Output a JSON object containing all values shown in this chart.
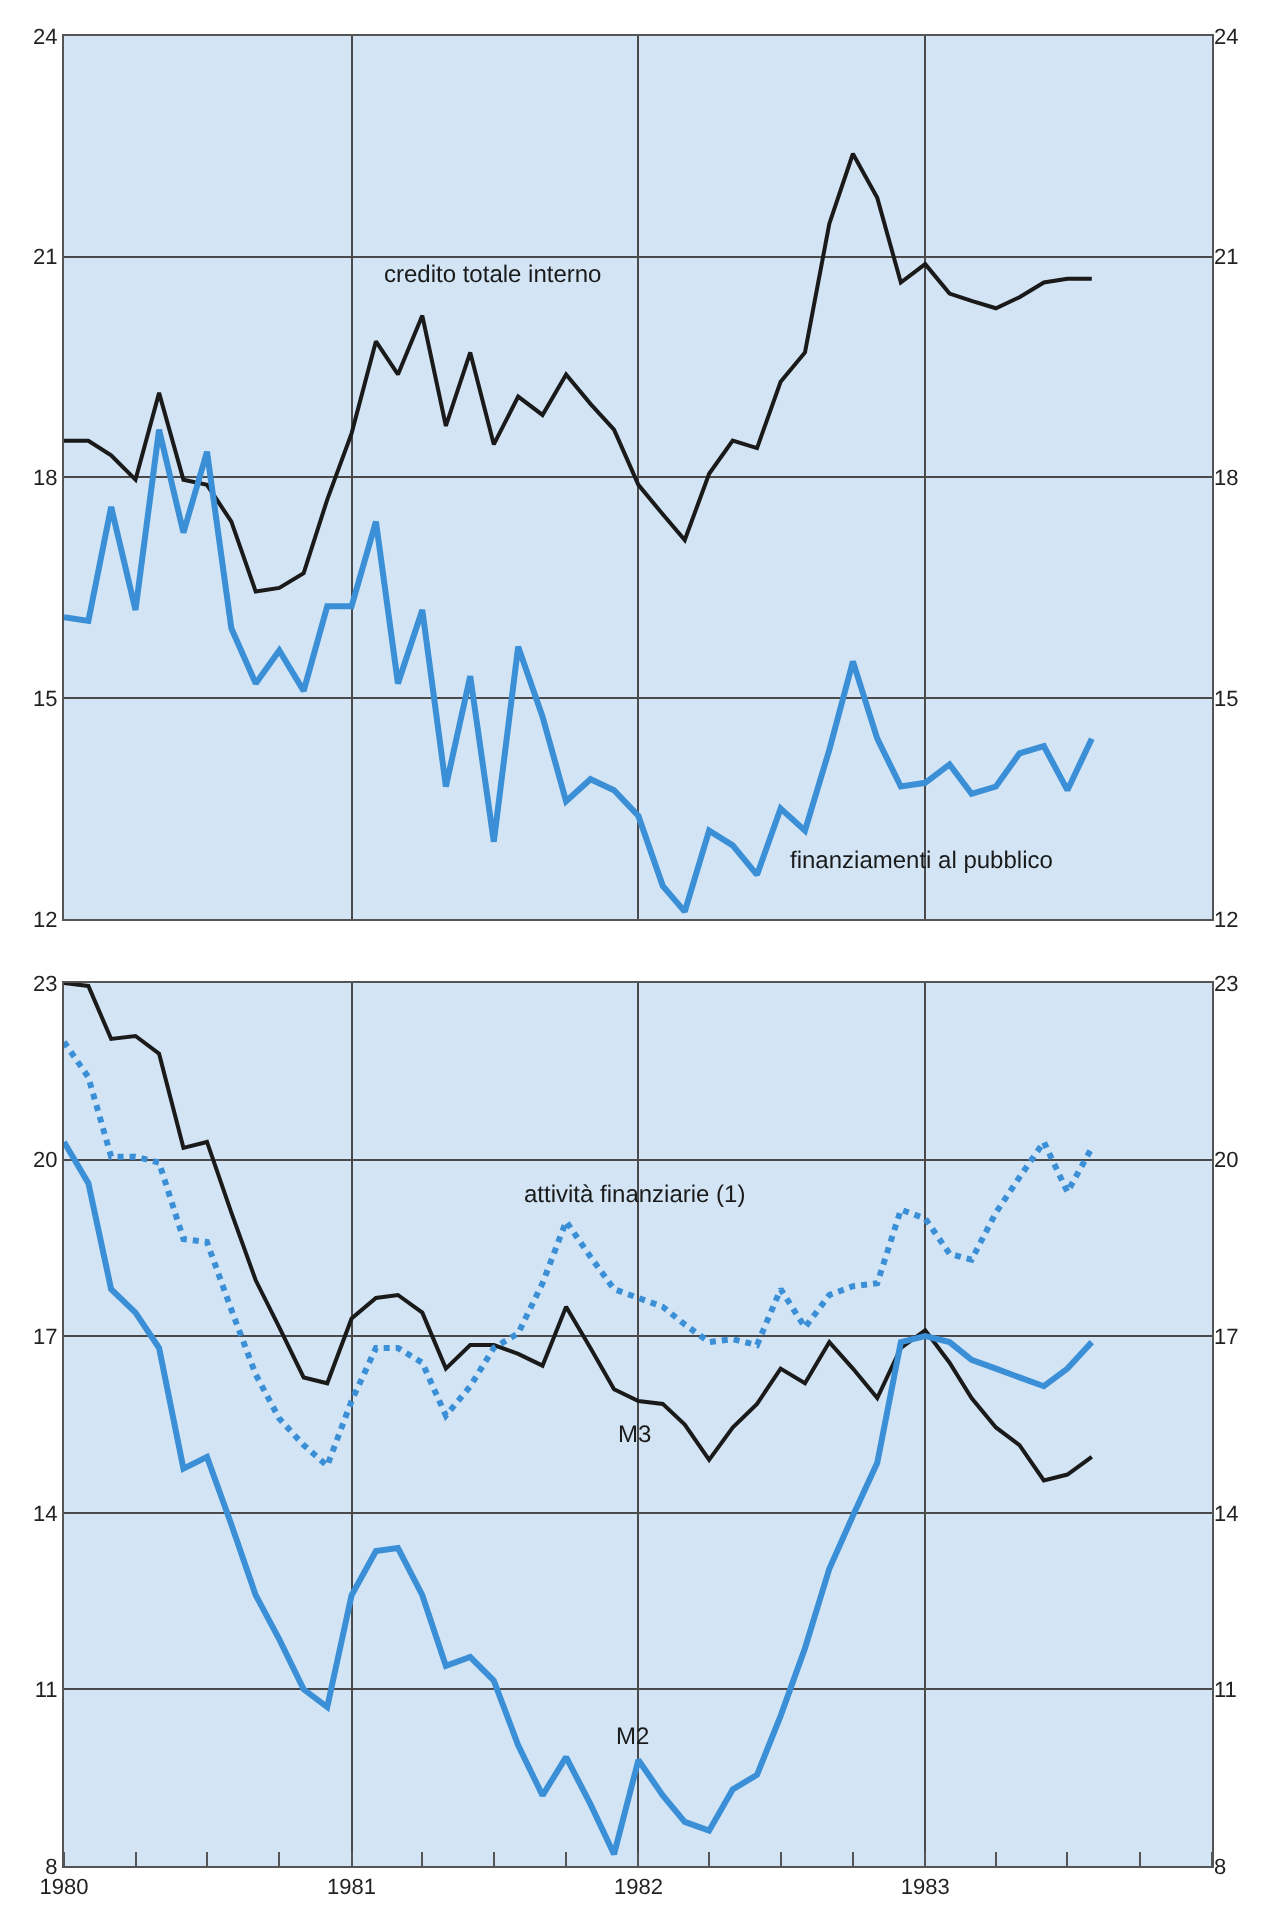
{
  "chart_data": [
    {
      "type": "line",
      "tick_labels": "y",
      "grid": true,
      "marker": "none",
      "x": [
        "1980-01",
        "1980-02",
        "1980-03",
        "1980-04",
        "1980-05",
        "1980-06",
        "1980-07",
        "1980-08",
        "1980-09",
        "1980-10",
        "1980-11",
        "1980-12",
        "1981-01",
        "1981-02",
        "1981-03",
        "1981-04",
        "1981-05",
        "1981-06",
        "1981-07",
        "1981-08",
        "1981-09",
        "1981-10",
        "1981-11",
        "1981-12",
        "1982-01",
        "1982-02",
        "1982-03",
        "1982-04",
        "1982-05",
        "1982-06",
        "1982-07",
        "1982-08",
        "1982-09",
        "1982-10",
        "1982-11",
        "1982-12",
        "1983-01",
        "1983-02",
        "1983-03",
        "1983-04",
        "1983-05",
        "1983-06",
        "1983-07",
        "1983-08"
      ],
      "xlim": [
        "1980-01-01",
        "1984-01-01"
      ],
      "xticks": [
        {
          "value": "1980-01-01",
          "label": null
        },
        {
          "value": "1981-01-01",
          "label": null
        },
        {
          "value": "1982-01-01",
          "label": null
        },
        {
          "value": "1983-01-01",
          "label": null
        },
        {
          "value": "1984-01-01",
          "label": null
        }
      ],
      "ylim": [
        12,
        24
      ],
      "yticks": [
        12,
        15,
        18,
        21,
        24
      ],
      "y2lim": [
        12,
        24
      ],
      "y2ticks": [
        12,
        15,
        18,
        21,
        24
      ],
      "series": [
        {
          "name": "credito totale interno",
          "color": "#1a1a1a",
          "line_style": "solid",
          "values": [
            18.5,
            18.5,
            18.3,
            17.97,
            19.15,
            17.97,
            17.9,
            17.4,
            16.45,
            16.5,
            16.7,
            17.7,
            18.6,
            19.85,
            19.4,
            20.2,
            18.7,
            19.7,
            18.45,
            19.1,
            18.85,
            19.4,
            19.0,
            18.65,
            17.9,
            17.5,
            17.15,
            18.05,
            18.5,
            18.4,
            19.3,
            19.7,
            21.45,
            22.4,
            21.8,
            20.65,
            20.9,
            20.5,
            20.4,
            20.3,
            20.45,
            20.65,
            20.7,
            20.7
          ]
        },
        {
          "name": "finanziamenti al pubblico",
          "color": "#3a8fd6",
          "line_style": "solid",
          "values": [
            16.1,
            16.05,
            17.6,
            16.2,
            18.65,
            17.25,
            18.35,
            15.95,
            15.2,
            15.65,
            15.1,
            16.25,
            16.25,
            17.4,
            15.2,
            16.2,
            13.8,
            15.3,
            13.05,
            15.7,
            14.75,
            13.6,
            13.9,
            13.75,
            13.4,
            12.45,
            12.1,
            13.2,
            13.0,
            12.6,
            13.5,
            13.2,
            14.3,
            15.5,
            14.45,
            13.8,
            13.85,
            14.1,
            13.7,
            13.8,
            14.25,
            14.35,
            13.75,
            14.45
          ]
        }
      ]
    },
    {
      "type": "line",
      "grid": true,
      "marker": "none",
      "x": [
        "1980-01",
        "1980-02",
        "1980-03",
        "1980-04",
        "1980-05",
        "1980-06",
        "1980-07",
        "1980-08",
        "1980-09",
        "1980-10",
        "1980-11",
        "1980-12",
        "1981-01",
        "1981-02",
        "1981-03",
        "1981-04",
        "1981-05",
        "1981-06",
        "1981-07",
        "1981-08",
        "1981-09",
        "1981-10",
        "1981-11",
        "1981-12",
        "1982-01",
        "1982-02",
        "1982-03",
        "1982-04",
        "1982-05",
        "1982-06",
        "1982-07",
        "1982-08",
        "1982-09",
        "1982-10",
        "1982-11",
        "1982-12",
        "1983-01",
        "1983-02",
        "1983-03",
        "1983-04",
        "1983-05",
        "1983-06",
        "1983-07",
        "1983-08"
      ],
      "xlim": [
        "1980-01-01",
        "1984-01-01"
      ],
      "xticks": [
        {
          "value": "1980-01-01",
          "label": "1980"
        },
        {
          "value": "1981-01-01",
          "label": "1981"
        },
        {
          "value": "1982-01-01",
          "label": "1982"
        },
        {
          "value": "1983-01-01",
          "label": "1983"
        },
        {
          "value": "1984-01-01",
          "label": null
        }
      ],
      "ylim": [
        8,
        23
      ],
      "yticks": [
        8,
        11,
        14,
        17,
        20,
        23
      ],
      "y2lim": [
        8,
        23
      ],
      "y2ticks": [
        8,
        11,
        14,
        17,
        20,
        23
      ],
      "series": [
        {
          "name": "M3",
          "color": "#1a1a1a",
          "line_style": "solid",
          "values": [
            23.0,
            22.95,
            22.05,
            22.1,
            21.8,
            20.2,
            20.3,
            19.1,
            17.95,
            17.15,
            16.3,
            16.2,
            17.3,
            17.65,
            17.7,
            17.4,
            16.45,
            16.85,
            16.85,
            16.7,
            16.5,
            17.5,
            16.8,
            16.1,
            15.9,
            15.85,
            15.5,
            14.9,
            15.45,
            15.85,
            16.45,
            16.2,
            16.9,
            16.45,
            15.95,
            16.8,
            17.1,
            16.55,
            15.95,
            15.45,
            15.15,
            14.55,
            14.65,
            14.95
          ]
        },
        {
          "name": "attività finanziarie (1)",
          "color": "#3a8fd6",
          "line_style": "dotted",
          "values": [
            22.0,
            21.4,
            20.05,
            20.05,
            19.95,
            18.65,
            18.6,
            17.45,
            16.35,
            15.6,
            15.15,
            14.8,
            15.9,
            16.8,
            16.8,
            16.55,
            15.65,
            16.15,
            16.8,
            17.05,
            17.9,
            18.95,
            18.35,
            17.8,
            17.65,
            17.5,
            17.2,
            16.9,
            16.95,
            16.85,
            17.8,
            17.15,
            17.7,
            17.85,
            17.9,
            19.15,
            19.0,
            18.4,
            18.3,
            19.1,
            19.7,
            20.3,
            19.45,
            20.2
          ]
        },
        {
          "name": "M2",
          "color": "#3a8fd6",
          "line_style": "solid",
          "values": [
            20.3,
            19.6,
            17.8,
            17.4,
            16.8,
            14.75,
            14.95,
            13.8,
            12.6,
            11.85,
            11.0,
            10.7,
            12.6,
            13.35,
            13.4,
            12.6,
            11.4,
            11.55,
            11.15,
            10.05,
            9.2,
            9.85,
            9.05,
            8.2,
            9.8,
            9.2,
            8.75,
            8.6,
            9.3,
            9.55,
            10.55,
            11.7,
            13.05,
            13.95,
            14.85,
            16.9,
            17.0,
            16.9,
            16.6,
            16.45,
            16.3,
            16.15,
            16.45,
            16.9
          ]
        }
      ]
    }
  ]
}
